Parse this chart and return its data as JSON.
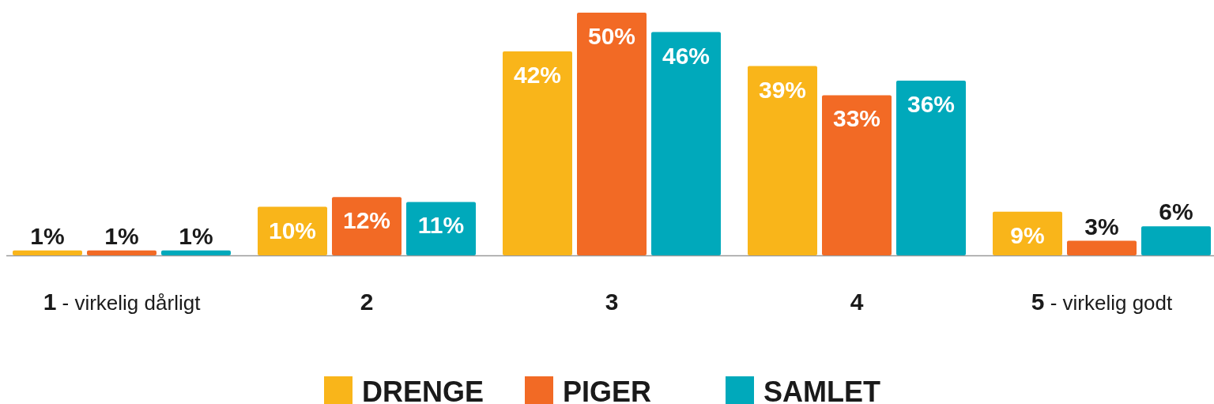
{
  "chart_data": {
    "type": "bar",
    "categories": [
      "1 - virkelig dårligt",
      "2",
      "3",
      "4",
      "5 - virkelig godt"
    ],
    "series": [
      {
        "name": "DRENGE",
        "color": "#f9b51a",
        "values": [
          1,
          10,
          42,
          39,
          9
        ],
        "value_labels": [
          "1%",
          "10%",
          "42%",
          "39%",
          "9%"
        ]
      },
      {
        "name": "PIGER",
        "color": "#f26a25",
        "values": [
          1,
          12,
          50,
          33,
          3
        ],
        "value_labels": [
          "1%",
          "12%",
          "50%",
          "33%",
          "3%"
        ]
      },
      {
        "name": "SAMLET",
        "color": "#00a9bb",
        "values": [
          1,
          11,
          46,
          36,
          6
        ],
        "value_labels": [
          "1%",
          "11%",
          "46%",
          "36%",
          "6%"
        ]
      }
    ],
    "legend": "bottom"
  }
}
